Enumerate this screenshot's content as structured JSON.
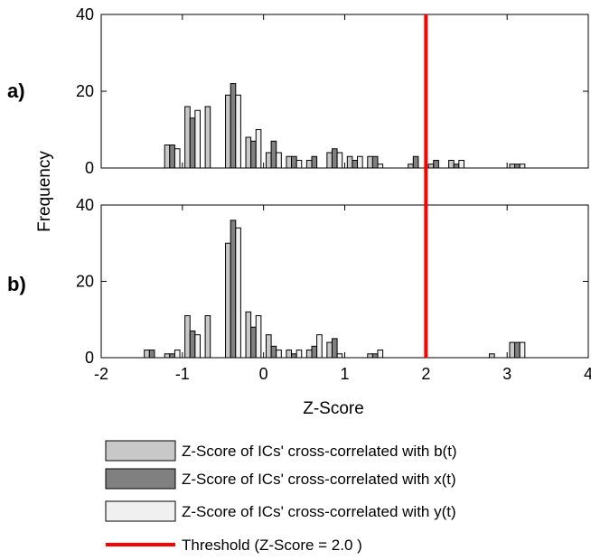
{
  "chart_data": {
    "type": "bar",
    "xlabel": "Z-Score",
    "ylabel": "Frequency",
    "xlim": [
      -2,
      4
    ],
    "ylim": [
      0,
      40
    ],
    "xticks": [
      -2,
      -1,
      0,
      1,
      2,
      3,
      4
    ],
    "yticks": [
      0,
      20,
      40
    ],
    "grid": false,
    "legend_position": "bottom",
    "bin_width": 0.25,
    "threshold": {
      "label": "Threshold (Z-Score = 2.0  )",
      "value": 2.0,
      "color": "#ff0000"
    },
    "series_colors": [
      "#c8c8c8",
      "#808080",
      "#f0f0f0"
    ],
    "series_labels": [
      "Z-Score of ICs' cross-correlated with b(t)",
      "Z-Score of ICs' cross-correlated with x(t)",
      "Z-Score of ICs' cross-correlated with y(t)"
    ],
    "panels": [
      {
        "label": "a)",
        "bin_centers": [
          -1.125,
          -0.875,
          -0.625,
          -0.375,
          -0.125,
          0.125,
          0.375,
          0.625,
          0.875,
          1.125,
          1.375,
          1.625,
          1.875,
          2.125,
          2.375,
          2.625,
          2.875,
          3.125,
          3.375
        ],
        "series": [
          {
            "values": [
              6,
              16,
              16,
              19,
              8,
              4,
              3,
              2,
              4,
              3,
              3,
              0,
              1,
              1,
              2,
              0,
              0,
              1,
              0
            ]
          },
          {
            "values": [
              6,
              13,
              0,
              22,
              7,
              7,
              3,
              3,
              5,
              2,
              3,
              0,
              3,
              2,
              1,
              0,
              0,
              1,
              0
            ]
          },
          {
            "values": [
              5,
              15,
              0,
              19,
              10,
              4,
              2,
              0,
              4,
              3,
              1,
              0,
              0,
              0,
              2,
              0,
              0,
              1,
              0
            ]
          }
        ]
      },
      {
        "label": "b)",
        "bin_centers": [
          -1.375,
          -1.125,
          -0.875,
          -0.625,
          -0.375,
          -0.125,
          0.125,
          0.375,
          0.625,
          0.875,
          1.125,
          1.375,
          1.625,
          1.875,
          2.125,
          2.375,
          2.625,
          2.875,
          3.125,
          3.375
        ],
        "series": [
          {
            "values": [
              2,
              1,
              11,
              11,
              30,
              12,
              6,
              2,
              2,
              4,
              0,
              1,
              0,
              0,
              0,
              0,
              0,
              1,
              4,
              0
            ]
          },
          {
            "values": [
              2,
              1,
              7,
              0,
              36,
              8,
              3,
              1,
              3,
              5,
              0,
              1,
              0,
              0,
              0,
              0,
              0,
              0,
              4,
              0
            ]
          },
          {
            "values": [
              0,
              2,
              6,
              0,
              34,
              11,
              2,
              2,
              6,
              1,
              0,
              2,
              0,
              0,
              0,
              0,
              0,
              0,
              4,
              0
            ]
          }
        ]
      }
    ]
  }
}
